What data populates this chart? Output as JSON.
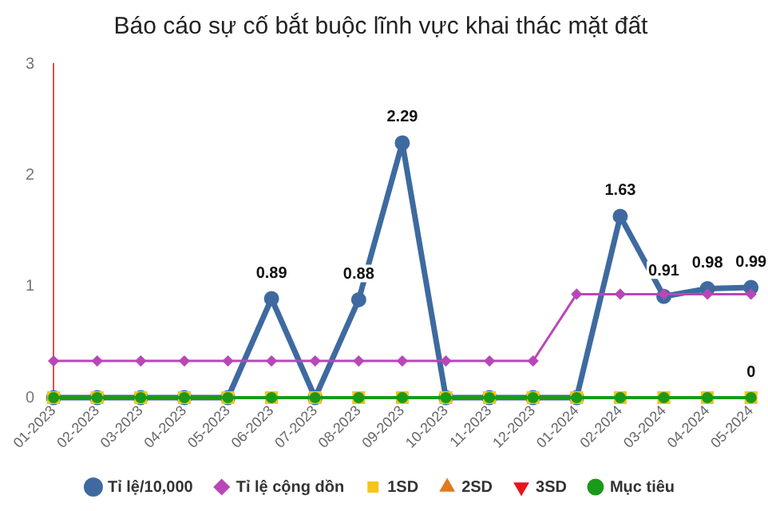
{
  "chart_data": {
    "type": "line",
    "title": "Báo cáo sự cố bắt buộc lĩnh vực khai thác mặt đất",
    "categories": [
      "01-2023",
      "02-2023",
      "03-2023",
      "04-2023",
      "05-2023",
      "06-2023",
      "07-2023",
      "08-2023",
      "09-2023",
      "10-2023",
      "11-2023",
      "12-2023",
      "01-2024",
      "02-2024",
      "03-2024",
      "04-2024",
      "05-2024"
    ],
    "ylim": [
      0,
      3
    ],
    "yticks": [
      0,
      1,
      2,
      3
    ],
    "grid": false,
    "legend": "bottom",
    "series": [
      {
        "name": "Tỉ lệ/10,000",
        "color": "#3e6aa0",
        "marker": "circle",
        "values": [
          0,
          0,
          0,
          0,
          0,
          0.89,
          0,
          0.88,
          2.29,
          0,
          0,
          0,
          0,
          1.63,
          0.91,
          0.98,
          0.99
        ],
        "value_labels": [
          null,
          null,
          null,
          null,
          null,
          "0.89",
          null,
          "0.88",
          "2.29",
          null,
          null,
          null,
          null,
          "1.63",
          "0.91",
          "0.98",
          "0.99"
        ]
      },
      {
        "name": "Tỉ lệ cộng dồn",
        "color": "#b847b8",
        "marker": "diamond",
        "values": [
          0.33,
          0.33,
          0.33,
          0.33,
          0.33,
          0.33,
          0.33,
          0.33,
          0.33,
          0.33,
          0.33,
          0.33,
          0.93,
          0.93,
          0.93,
          0.93,
          0.93
        ]
      },
      {
        "name": "1SD",
        "type": "scatter",
        "color": "#f5c518",
        "marker": "square",
        "values": [
          0,
          0,
          0,
          0,
          0,
          0,
          0,
          0,
          0,
          0,
          0,
          0,
          0,
          0,
          0,
          0,
          0
        ]
      },
      {
        "name": "2SD",
        "color": "#e07b1f",
        "marker": "triangle",
        "values": [
          null,
          null,
          null,
          null,
          null,
          null,
          null,
          null,
          null,
          null,
          null,
          null,
          null,
          null,
          null,
          null,
          null
        ]
      },
      {
        "name": "3SD",
        "color": "#e8141c",
        "marker": "triangle-down",
        "values": [
          null,
          null,
          null,
          null,
          null,
          null,
          null,
          null,
          null,
          null,
          null,
          null,
          null,
          null,
          null,
          null,
          null
        ]
      },
      {
        "name": "Mục tiêu",
        "color": "#1a9a1a",
        "marker": "circle",
        "values": [
          0,
          0,
          0,
          0,
          0,
          0,
          0,
          0,
          0,
          0,
          0,
          0,
          0,
          0,
          0,
          0,
          0
        ],
        "value_labels": [
          null,
          null,
          null,
          null,
          null,
          null,
          null,
          null,
          null,
          null,
          null,
          null,
          null,
          null,
          null,
          null,
          "0"
        ]
      }
    ]
  }
}
